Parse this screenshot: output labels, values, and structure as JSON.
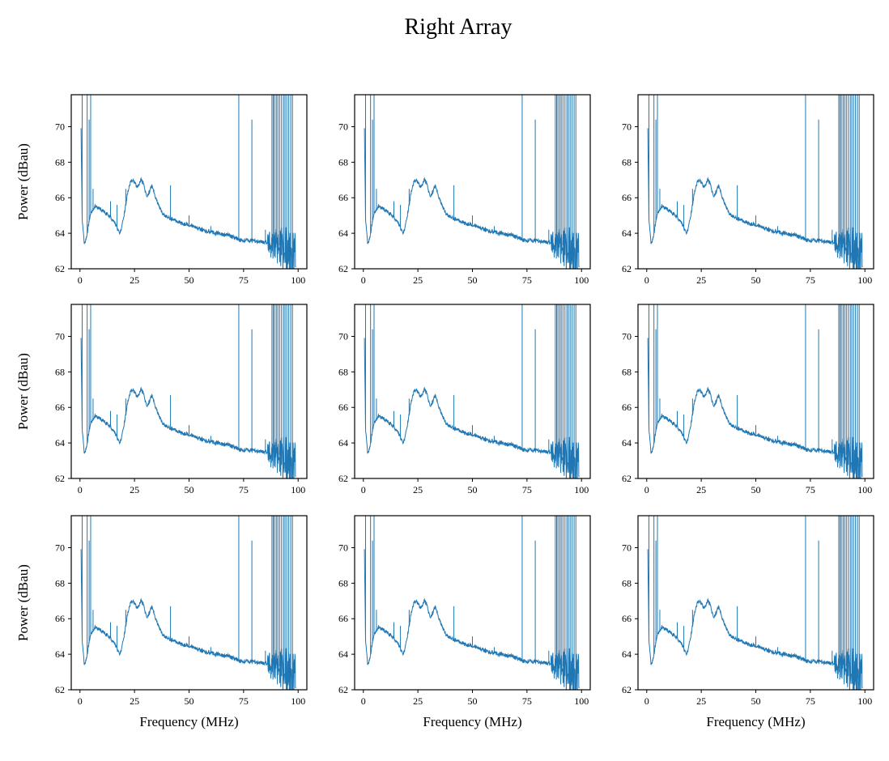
{
  "figure": {
    "suptitle": "Right Array",
    "line_color": "#1f77b4"
  },
  "chart_data": {
    "type": "line",
    "layout": {
      "rows": 3,
      "cols": 3,
      "sharex": false,
      "sharey": false
    },
    "title": "Right Array",
    "xlabel": "Frequency (MHz)",
    "ylabel": "Power (dBau)",
    "xlim": [
      -4,
      104
    ],
    "ylim": [
      62,
      71.8
    ],
    "xticks": [
      0,
      25,
      50,
      75,
      100
    ],
    "xtick_labels": [
      "0",
      "25",
      "50",
      "75",
      "100"
    ],
    "yticks": [
      62,
      64,
      66,
      68,
      70
    ],
    "ytick_labels": [
      "62",
      "64",
      "66",
      "68",
      70
    ],
    "grid": false,
    "legend": "none",
    "series_color": "#1f77b4",
    "baseline": {
      "x": [
        0.5,
        1.0,
        2.0,
        3.0,
        4.0,
        5.0,
        6.0,
        7.0,
        8.0,
        9.0,
        10.0,
        12.0,
        14.0,
        16.0,
        18.0,
        19.0,
        20.0,
        21.0,
        22.0,
        23.0,
        24.0,
        25.0,
        26.0,
        27.0,
        28.0,
        29.0,
        30.0,
        31.0,
        32.0,
        33.0,
        34.0,
        35.0,
        36.0,
        37.0,
        38.0,
        40.0,
        42.0,
        44.0,
        46.0,
        48.0,
        50.0,
        52.0,
        54.0,
        56.0,
        58.0,
        60.0,
        62.0,
        64.0,
        66.0,
        68.0,
        70.0,
        72.0,
        74.0,
        76.0,
        78.0,
        80.0,
        82.0,
        84.0,
        86.0,
        88.0,
        90.0,
        92.0,
        94.0,
        96.0,
        98.0,
        99.0
      ],
      "y": [
        70.0,
        64.8,
        63.4,
        63.8,
        64.5,
        65.1,
        65.4,
        65.5,
        65.4,
        65.4,
        65.3,
        65.1,
        64.9,
        64.6,
        64.0,
        64.2,
        64.9,
        65.6,
        66.4,
        66.8,
        67.0,
        66.9,
        66.6,
        66.7,
        67.0,
        66.8,
        66.3,
        66.1,
        66.4,
        66.7,
        66.3,
        65.9,
        65.6,
        65.3,
        65.1,
        64.9,
        64.8,
        64.7,
        64.6,
        64.5,
        64.5,
        64.4,
        64.3,
        64.2,
        64.1,
        64.1,
        64.0,
        64.0,
        63.9,
        63.9,
        63.8,
        63.7,
        63.6,
        63.6,
        63.6,
        63.6,
        63.5,
        63.5,
        63.5,
        63.5,
        63.4,
        63.3,
        63.0,
        62.8,
        62.5,
        62.2
      ]
    },
    "spikes": [
      {
        "x": 1.0,
        "y": 71.8
      },
      {
        "x": 3.3,
        "y": 71.8
      },
      {
        "x": 4.2,
        "y": 70.4
      },
      {
        "x": 4.9,
        "y": 71.8
      },
      {
        "x": 6.0,
        "y": 66.5
      },
      {
        "x": 14.0,
        "y": 65.8
      },
      {
        "x": 17.0,
        "y": 65.6
      },
      {
        "x": 21.0,
        "y": 66.5
      },
      {
        "x": 41.5,
        "y": 66.7
      },
      {
        "x": 50.0,
        "y": 65.0
      },
      {
        "x": 60.0,
        "y": 64.4
      },
      {
        "x": 65.0,
        "y": 64.0
      },
      {
        "x": 72.8,
        "y": 71.8
      },
      {
        "x": 78.8,
        "y": 70.4
      },
      {
        "x": 85.0,
        "y": 64.2
      },
      {
        "x": 88.0,
        "y": 71.8
      },
      {
        "x": 88.6,
        "y": 71.8
      },
      {
        "x": 89.2,
        "y": 71.8
      },
      {
        "x": 90.0,
        "y": 71.8
      },
      {
        "x": 90.7,
        "y": 71.8
      },
      {
        "x": 91.5,
        "y": 71.8
      },
      {
        "x": 92.4,
        "y": 71.8
      },
      {
        "x": 93.3,
        "y": 71.8
      },
      {
        "x": 94.0,
        "y": 71.8
      },
      {
        "x": 94.8,
        "y": 71.8
      },
      {
        "x": 95.7,
        "y": 71.8
      },
      {
        "x": 96.6,
        "y": 71.8
      },
      {
        "x": 97.4,
        "y": 71.8
      }
    ],
    "panels": [
      {
        "row": 1,
        "col": 1,
        "xlabel": "",
        "ylabel": "Power (dBau)"
      },
      {
        "row": 1,
        "col": 2,
        "xlabel": "",
        "ylabel": ""
      },
      {
        "row": 1,
        "col": 3,
        "xlabel": "",
        "ylabel": ""
      },
      {
        "row": 2,
        "col": 1,
        "xlabel": "",
        "ylabel": "Power (dBau)"
      },
      {
        "row": 2,
        "col": 2,
        "xlabel": "",
        "ylabel": ""
      },
      {
        "row": 2,
        "col": 3,
        "xlabel": "",
        "ylabel": ""
      },
      {
        "row": 3,
        "col": 1,
        "xlabel": "Frequency (MHz)",
        "ylabel": "Power (dBau)"
      },
      {
        "row": 3,
        "col": 2,
        "xlabel": "Frequency (MHz)",
        "ylabel": ""
      },
      {
        "row": 3,
        "col": 3,
        "xlabel": "Frequency (MHz)",
        "ylabel": ""
      }
    ]
  }
}
